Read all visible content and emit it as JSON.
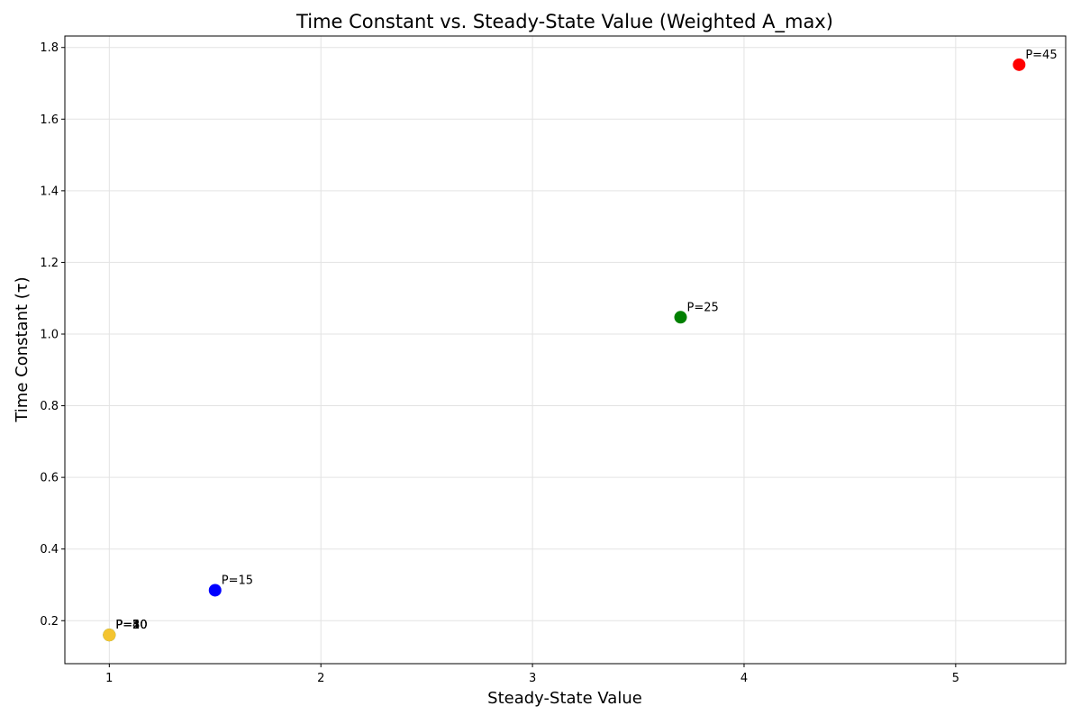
{
  "chart_data": {
    "type": "scatter",
    "title": "Time Constant vs. Steady-State Value (Weighted A_max)",
    "xlabel": "Steady-State Value",
    "ylabel": "Time Constant (τ)",
    "xlim": [
      0.79,
      5.52
    ],
    "ylim": [
      0.08,
      1.832
    ],
    "x_ticks": [
      1,
      2,
      3,
      4,
      5
    ],
    "y_ticks": [
      0.2,
      0.4,
      0.6,
      0.8,
      1.0,
      1.2,
      1.4,
      1.6,
      1.8
    ],
    "grid": true,
    "points": [
      {
        "x": 1.0,
        "y": 0.16,
        "label": "P=5",
        "color": "#800080"
      },
      {
        "x": 1.0,
        "y": 0.16,
        "label": "P=10",
        "color": "#ffa500"
      },
      {
        "x": 1.0,
        "y": 0.16,
        "label": "P=20",
        "color": "#00bcd4"
      },
      {
        "x": 1.0,
        "y": 0.16,
        "label": "P=30",
        "color": "#8bc34a"
      },
      {
        "x": 1.0,
        "y": 0.16,
        "label": "P=40",
        "color": "#f4c430"
      },
      {
        "x": 1.5,
        "y": 0.285,
        "label": "P=15",
        "color": "#0000ff"
      },
      {
        "x": 3.7,
        "y": 1.047,
        "label": "P=25",
        "color": "#008000"
      },
      {
        "x": 5.3,
        "y": 1.752,
        "label": "P=45",
        "color": "#ff0000"
      }
    ]
  }
}
